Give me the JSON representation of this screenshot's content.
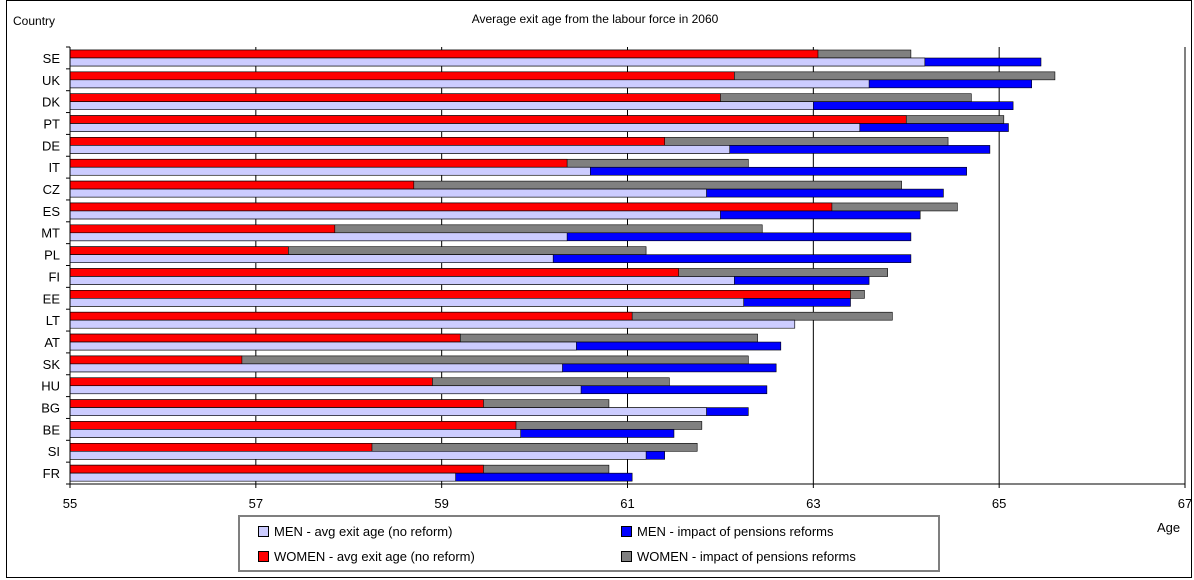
{
  "chart_data": {
    "type": "bar",
    "orientation": "horizontal",
    "title": "Average exit age from the labour force in 2060",
    "ylabel": "Country",
    "xlabel": "Age",
    "xlim": [
      55,
      67
    ],
    "xticks": [
      55,
      57,
      59,
      61,
      63,
      65,
      67
    ],
    "grid": "vertical",
    "legend_position": "bottom",
    "categories": [
      "SE",
      "UK",
      "DK",
      "PT",
      "DE",
      "IT",
      "CZ",
      "ES",
      "MT",
      "PL",
      "FI",
      "EE",
      "LT",
      "AT",
      "SK",
      "HU",
      "BG",
      "BE",
      "SI",
      "FR"
    ],
    "series": [
      {
        "name": "WOMEN - avg exit age (no reform)",
        "color": "#ff0000",
        "values": [
          63.05,
          62.15,
          62.0,
          64.0,
          61.4,
          60.35,
          58.7,
          63.2,
          57.85,
          57.35,
          61.55,
          63.4,
          61.05,
          59.2,
          56.85,
          58.9,
          59.45,
          59.8,
          58.25,
          59.45
        ]
      },
      {
        "name": "WOMEN - impact of pensions reforms",
        "color": "#808080",
        "values": [
          64.05,
          65.6,
          64.7,
          65.05,
          64.45,
          62.3,
          63.95,
          64.55,
          62.45,
          61.2,
          63.8,
          63.55,
          63.85,
          62.4,
          62.3,
          61.45,
          60.8,
          61.8,
          61.75,
          60.8
        ]
      },
      {
        "name": "MEN - avg exit age (no reform)",
        "color": "#ccccff",
        "values": [
          64.2,
          63.6,
          63.0,
          63.5,
          62.1,
          60.6,
          61.85,
          62.0,
          60.35,
          60.2,
          62.15,
          62.25,
          62.8,
          60.45,
          60.3,
          60.5,
          61.85,
          59.85,
          61.2,
          59.15
        ]
      },
      {
        "name": "MEN - impact of pensions reforms",
        "color": "#0000ff",
        "values": [
          65.45,
          65.35,
          65.15,
          65.1,
          64.9,
          64.65,
          64.4,
          64.15,
          64.05,
          64.05,
          63.6,
          63.4,
          62.8,
          62.65,
          62.6,
          62.5,
          62.3,
          61.5,
          61.4,
          61.05
        ]
      }
    ]
  },
  "legend": {
    "items": [
      {
        "label": "MEN - avg exit age (no reform)",
        "color": "#ccccff"
      },
      {
        "label": "MEN - impact of pensions reforms",
        "color": "#0000ff"
      },
      {
        "label": "WOMEN - avg exit age (no reform)",
        "color": "#ff0000"
      },
      {
        "label": "WOMEN - impact of pensions reforms",
        "color": "#808080"
      }
    ]
  }
}
